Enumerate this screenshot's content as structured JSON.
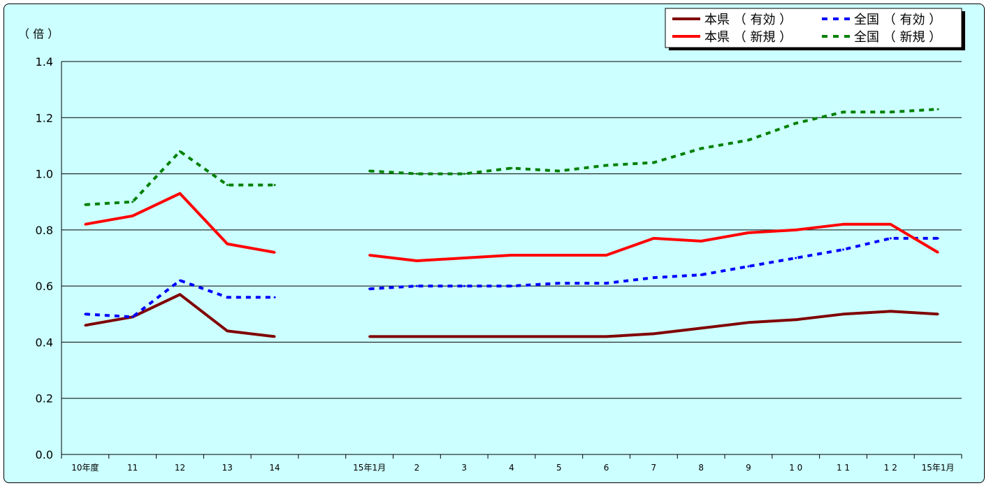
{
  "chart_data": {
    "type": "line",
    "unit_label": "（ 倍 ）",
    "categories": [
      "10年度",
      "11",
      "12",
      "13",
      "14",
      "",
      "15年1月",
      "2",
      "3",
      "4",
      "5",
      "6",
      "7",
      "8",
      "9",
      "1 0",
      "1 1",
      "1 2",
      "15年1月"
    ],
    "ylim": [
      0,
      1.4
    ],
    "yticks": [
      "0.0",
      "0.2",
      "0.4",
      "0.6",
      "0.8",
      "1.0",
      "1.2",
      "1.4"
    ],
    "grid": true,
    "legend_position": "top-right",
    "series": [
      {
        "name": "本県 （ 有効 ）",
        "color": "#800000",
        "dash": "solid",
        "values": [
          0.46,
          0.49,
          0.57,
          0.44,
          0.42,
          null,
          0.42,
          0.42,
          0.42,
          0.42,
          0.42,
          0.42,
          0.43,
          0.45,
          0.47,
          0.48,
          0.5,
          0.51,
          0.5
        ]
      },
      {
        "name": "全国 （ 有効 ）",
        "color": "#0000ff",
        "dash": "dashed",
        "values": [
          0.5,
          0.49,
          0.62,
          0.56,
          0.56,
          null,
          0.59,
          0.6,
          0.6,
          0.6,
          0.61,
          0.61,
          0.63,
          0.64,
          0.67,
          0.7,
          0.73,
          0.77,
          0.77
        ]
      },
      {
        "name": "本県 （ 新規 ）",
        "color": "#ff0000",
        "dash": "solid",
        "values": [
          0.82,
          0.85,
          0.93,
          0.75,
          0.72,
          null,
          0.71,
          0.69,
          0.7,
          0.71,
          0.71,
          0.71,
          0.77,
          0.76,
          0.79,
          0.8,
          0.82,
          0.82,
          0.72
        ]
      },
      {
        "name": "全国 （ 新規 ）",
        "color": "#008000",
        "dash": "dashed",
        "values": [
          0.89,
          0.9,
          1.08,
          0.96,
          0.96,
          null,
          1.01,
          1.0,
          1.0,
          1.02,
          1.01,
          1.03,
          1.04,
          1.09,
          1.12,
          1.18,
          1.22,
          1.22,
          1.23
        ]
      }
    ]
  }
}
